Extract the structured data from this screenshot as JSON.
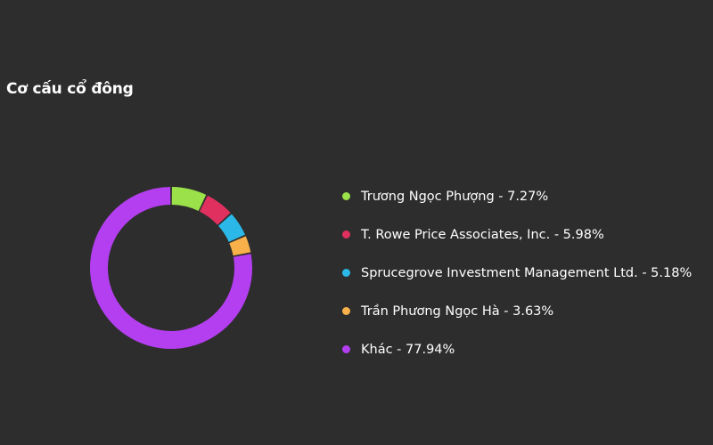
{
  "section": {
    "title": "Cơ cấu cổ đông"
  },
  "chart_data": {
    "type": "pie",
    "variant": "donut",
    "legend_position": "right",
    "series": [
      {
        "name": "Trương Ngọc Phượng",
        "value": 7.27,
        "color": "#9be14a",
        "label": "Trương Ngọc Phượng - 7.27%"
      },
      {
        "name": "T. Rowe Price Associates, Inc.",
        "value": 5.98,
        "color": "#e0305f",
        "label": "T. Rowe Price Associates, Inc. - 5.98%"
      },
      {
        "name": "Sprucegrove Investment Management Ltd.",
        "value": 5.18,
        "color": "#2bb8e8",
        "label": "Sprucegrove Investment Management Ltd. - 5.18%"
      },
      {
        "name": "Trần Phương Ngọc Hà",
        "value": 3.63,
        "color": "#f8b14a",
        "label": "Trần Phương Ngọc Hà - 3.63%"
      },
      {
        "name": "Khác",
        "value": 77.94,
        "color": "#b43ff0",
        "label": "Khác - 77.94%"
      }
    ]
  }
}
